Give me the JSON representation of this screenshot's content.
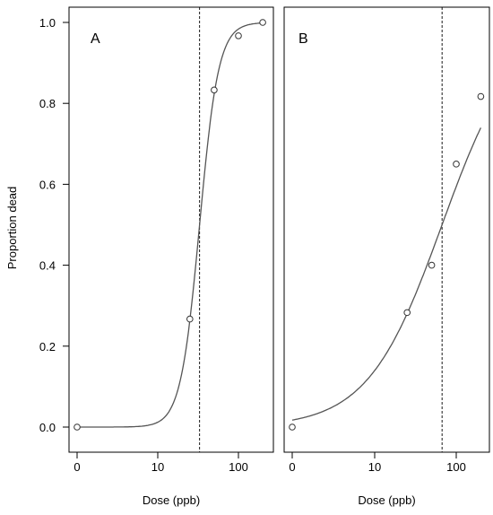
{
  "chart_data": [
    {
      "type": "scatter",
      "panel_label": "A",
      "xlabel": "Dose (ppb)",
      "ylabel": "Proportion dead",
      "x_scale": "log (0 plotted at left)",
      "x_ticks": [
        "0",
        "10",
        "100"
      ],
      "y_ticks": [
        "0.0",
        "0.2",
        "0.4",
        "0.6",
        "0.8",
        "1.0"
      ],
      "ylim": [
        0,
        1
      ],
      "points": [
        {
          "x": 0,
          "y": 0.0
        },
        {
          "x": 25,
          "y": 0.267
        },
        {
          "x": 50,
          "y": 0.833
        },
        {
          "x": 100,
          "y": 0.967
        },
        {
          "x": 200,
          "y": 1.0
        }
      ],
      "ld50_line_x": 33,
      "fitted_curve": "sigmoid"
    },
    {
      "type": "scatter",
      "panel_label": "B",
      "xlabel": "Dose (ppb)",
      "x_scale": "log (0 plotted at left)",
      "x_ticks": [
        "0",
        "10",
        "100"
      ],
      "ylim": [
        0,
        1
      ],
      "points": [
        {
          "x": 0,
          "y": 0.0
        },
        {
          "x": 25,
          "y": 0.283
        },
        {
          "x": 50,
          "y": 0.4
        },
        {
          "x": 100,
          "y": 0.65
        },
        {
          "x": 200,
          "y": 0.817
        }
      ],
      "ld50_line_x": 67,
      "fitted_curve": "sigmoid"
    }
  ]
}
